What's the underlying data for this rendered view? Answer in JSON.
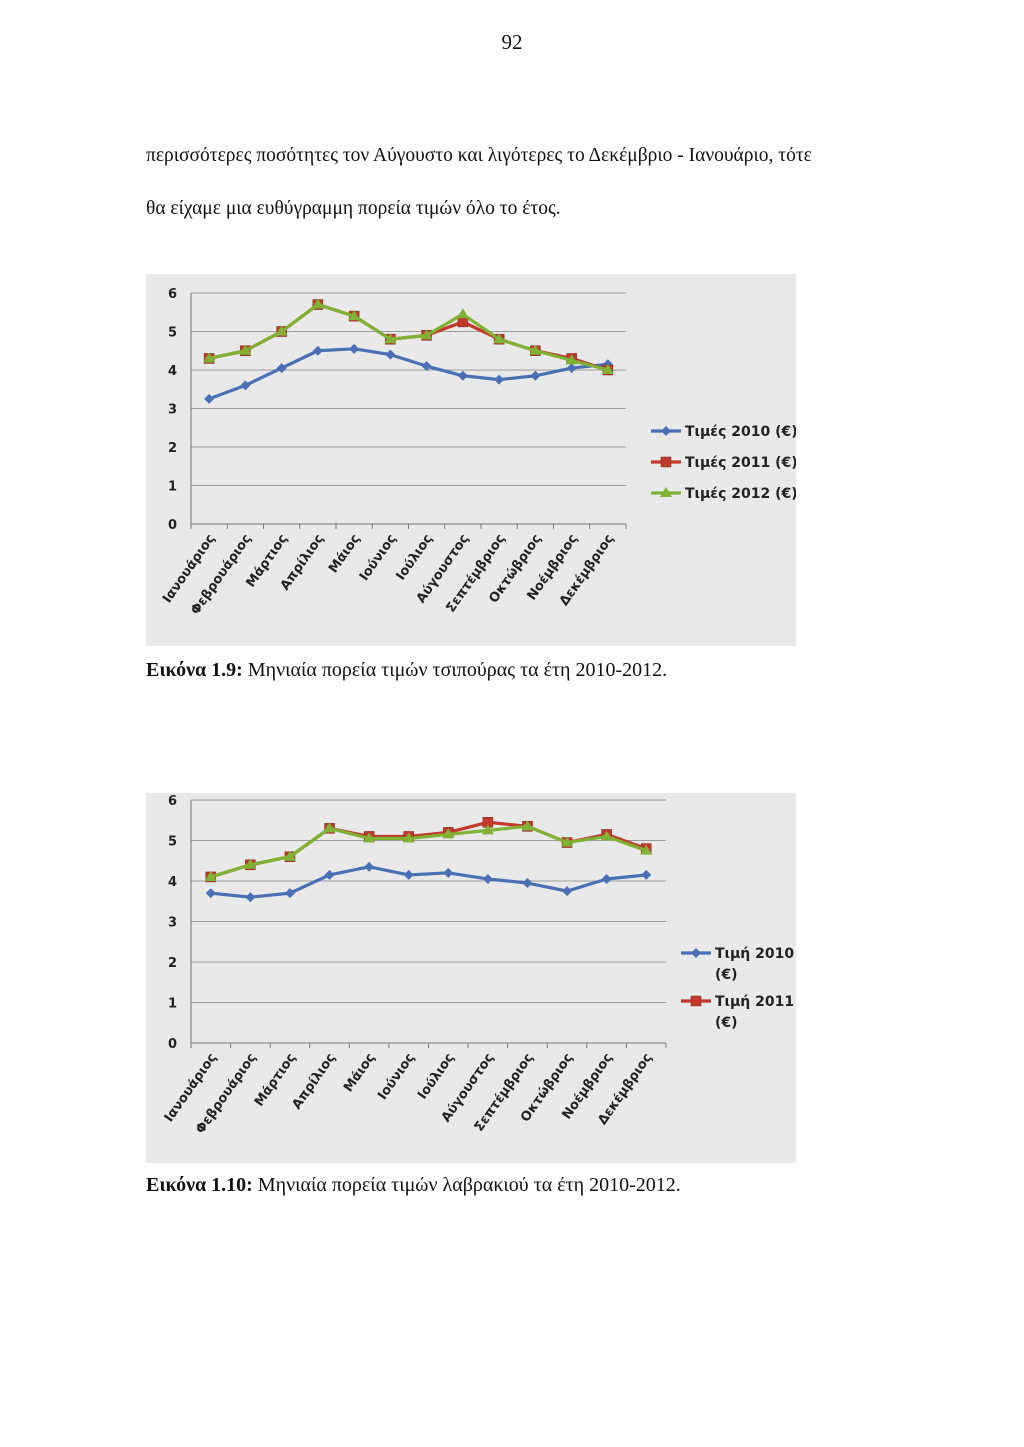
{
  "page": {
    "number": "92",
    "text_lines": [
      "περισσότερες ποσότητες τον Αύγουστο και λιγότερες το Δεκέμβριο - Ιανουάριο, τότε",
      "θα είχαμε μια ευθύγραμμη πορεία τιμών όλο το έτος."
    ]
  },
  "figures": [
    {
      "label": "Εικόνα 1.9:",
      "caption": " Μηνιαία πορεία τιμών τσιπούρας τα έτη 2010-2012."
    },
    {
      "label": "Εικόνα 1.10:",
      "caption": " Μηνιαία πορεία τιμών λαβρακιού τα έτη 2010-2012."
    }
  ],
  "chart_data": [
    {
      "type": "line",
      "categories": [
        "Ιανουάριος",
        "Φεβρουάριος",
        "Μάρτιος",
        "Απρίλιος",
        "Μάιος",
        "Ιούνιος",
        "Ιούλιος",
        "Αύγουστος",
        "Σεπτέμβριος",
        "Οκτώβριος",
        "Νοέμβριος",
        "Δεκέμβριος"
      ],
      "ylim": [
        0,
        6
      ],
      "yticks": [
        0,
        1,
        2,
        3,
        4,
        5,
        6
      ],
      "grid": true,
      "legend": "right",
      "series": [
        {
          "name": "Τιμές 2010 (€)",
          "color": "#4a6fb5",
          "marker": "diamond",
          "values": [
            3.25,
            3.6,
            4.05,
            4.5,
            4.55,
            4.4,
            4.1,
            3.85,
            3.75,
            3.85,
            4.05,
            4.15
          ]
        },
        {
          "name": "Τιμές 2011 (€)",
          "color": "#c0392b",
          "marker": "square",
          "values": [
            4.3,
            4.5,
            5.0,
            5.7,
            5.4,
            4.8,
            4.9,
            5.25,
            4.8,
            4.5,
            4.3,
            4.0
          ]
        },
        {
          "name": "Τιμές 2012 (€)",
          "color": "#7fb234",
          "marker": "triangle",
          "values": [
            4.3,
            4.5,
            5.0,
            5.7,
            5.4,
            4.8,
            4.9,
            5.45,
            4.8,
            4.5,
            4.25,
            4.0
          ]
        }
      ]
    },
    {
      "type": "line",
      "categories": [
        "Ιανουάριος",
        "Φεβρουάριος",
        "Μάρτιος",
        "Απρίλιος",
        "Μάιος",
        "Ιούνιος",
        "Ιούλιος",
        "Αύγουστος",
        "Σεπτέμβριος",
        "Οκτώβριος",
        "Νοέμβριος",
        "Δεκέμβριος"
      ],
      "ylim": [
        0,
        6
      ],
      "yticks": [
        0,
        1,
        2,
        3,
        4,
        5,
        6
      ],
      "grid": true,
      "legend": "right",
      "series": [
        {
          "name": "Τιμή 2010 (€)",
          "color": "#4a6fb5",
          "marker": "diamond",
          "values": [
            3.7,
            3.6,
            3.7,
            4.15,
            4.35,
            4.15,
            4.2,
            4.05,
            3.95,
            3.75,
            4.05,
            4.15
          ]
        },
        {
          "name": "Τιμή 2011 (€)",
          "color": "#c0392b",
          "marker": "square",
          "values": [
            4.1,
            4.4,
            4.6,
            5.3,
            5.1,
            5.1,
            5.2,
            5.45,
            5.35,
            4.95,
            5.15,
            4.8
          ]
        },
        {
          "name": "",
          "color": "#7fb234",
          "marker": "triangle",
          "values": [
            4.1,
            4.4,
            4.6,
            5.3,
            5.05,
            5.05,
            5.15,
            5.25,
            5.35,
            4.95,
            5.1,
            4.75
          ]
        }
      ]
    }
  ]
}
